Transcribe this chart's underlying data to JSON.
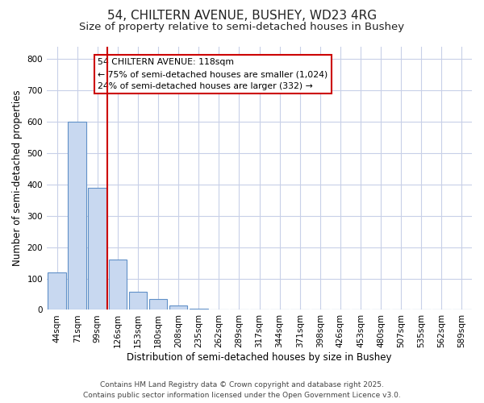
{
  "title1": "54, CHILTERN AVENUE, BUSHEY, WD23 4RG",
  "title2": "Size of property relative to semi-detached houses in Bushey",
  "xlabel": "Distribution of semi-detached houses by size in Bushey",
  "ylabel": "Number of semi-detached properties",
  "categories": [
    "44sqm",
    "71sqm",
    "99sqm",
    "126sqm",
    "153sqm",
    "180sqm",
    "208sqm",
    "235sqm",
    "262sqm",
    "289sqm",
    "317sqm",
    "344sqm",
    "371sqm",
    "398sqm",
    "426sqm",
    "453sqm",
    "480sqm",
    "507sqm",
    "535sqm",
    "562sqm",
    "589sqm"
  ],
  "values": [
    120,
    600,
    390,
    160,
    57,
    35,
    15,
    5,
    0,
    0,
    0,
    0,
    0,
    0,
    0,
    0,
    0,
    0,
    0,
    0,
    0
  ],
  "bar_color": "#c8d8f0",
  "bar_edge_color": "#6090c8",
  "vline_x": 2.5,
  "vline_color": "#cc0000",
  "annotation_title": "54 CHILTERN AVENUE: 118sqm",
  "annotation_line1": "← 75% of semi-detached houses are smaller (1,024)",
  "annotation_line2": "24% of semi-detached houses are larger (332) →",
  "annotation_box_color": "#cc0000",
  "ylim": [
    0,
    840
  ],
  "yticks": [
    0,
    100,
    200,
    300,
    400,
    500,
    600,
    700,
    800
  ],
  "footer1": "Contains HM Land Registry data © Crown copyright and database right 2025.",
  "footer2": "Contains public sector information licensed under the Open Government Licence v3.0.",
  "bg_color": "#ffffff",
  "plot_bg_color": "#ffffff",
  "grid_color": "#c8d0e8",
  "title1_fontsize": 11,
  "title2_fontsize": 9.5,
  "tick_fontsize": 7.5,
  "ylabel_fontsize": 8.5,
  "xlabel_fontsize": 8.5,
  "footer_fontsize": 6.5
}
